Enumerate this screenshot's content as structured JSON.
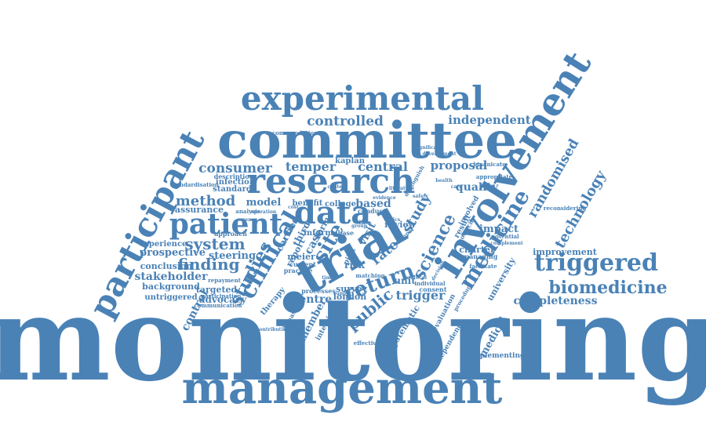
{
  "word_cloud": {
    "color": "#4a82b6",
    "words": [
      "monitoring",
      "management",
      "committee",
      "experimental",
      "research",
      "involvement",
      "participant",
      "trial",
      "data",
      "patient",
      "clinical",
      "triggered",
      "biomedicine",
      "medicine",
      "technology",
      "randomised",
      "controlled",
      "independent",
      "consumer",
      "temper",
      "central",
      "proposal",
      "quality",
      "method",
      "system",
      "finding",
      "studies",
      "return",
      "study",
      "science",
      "public",
      "trigger",
      "site",
      "completeness",
      "stakeholder",
      "conclusion",
      "prospective",
      "experience",
      "assurance",
      "background",
      "untriggered",
      "advocacy",
      "targeted",
      "steering",
      "model",
      "standard",
      "infection",
      "benefit",
      "college",
      "based",
      "review",
      "rate",
      "impact",
      "charter",
      "improvement",
      "university",
      "medical",
      "centre",
      "london",
      "survey",
      "unit",
      "systematic",
      "member",
      "interview",
      "implementing",
      "evaluation",
      "independence",
      "risk",
      "case",
      "visit",
      "meier",
      "kaplan",
      "control",
      "therapy",
      "third",
      "form",
      "approach",
      "description",
      "standardisation",
      "recommendation",
      "carried",
      "analysis",
      "report",
      "practice",
      "current",
      "inform",
      "phase",
      "result",
      "council",
      "involved",
      "facilitate",
      "managing",
      "potential",
      "complement",
      "kinanicate",
      "appropriate",
      "reconsidering",
      "repayment",
      "participation",
      "communication",
      "effectiveness",
      "consent",
      "individual",
      "distinguish",
      "significant",
      "conduct",
      "matching",
      "pilot",
      "disease",
      "procedure",
      "contribution",
      "processes",
      "paper",
      "life",
      "agency",
      "cost",
      "decision",
      "development",
      "operation",
      "safety",
      "ethics",
      "group",
      "support",
      "time",
      "health",
      "care",
      "literature",
      "evidence",
      "protocol",
      "context"
    ]
  }
}
